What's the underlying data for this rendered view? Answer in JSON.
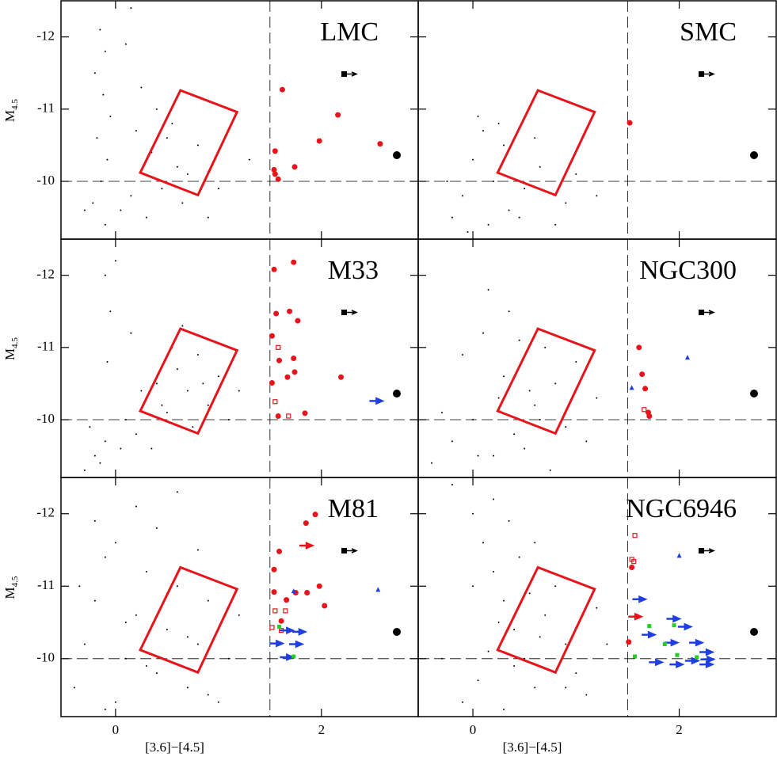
{
  "chart_data": [
    {
      "type": "scatter",
      "label": "LMC",
      "xlim": [
        -0.53,
        2.94
      ],
      "ylim": [
        -9.2,
        -12.5
      ],
      "yticks": [
        -12,
        -11,
        -10
      ],
      "ylabel": "M",
      "ylabel_sub": "4.5",
      "vline": 1.5,
      "hline": -10,
      "box": {
        "color": "#e8141b",
        "x": [
          0.63,
          1.18,
          0.8,
          0.24
        ],
        "y": [
          -11.26,
          -10.96,
          -9.81,
          -10.12
        ]
      },
      "series": [
        {
          "color": "#000000",
          "marker": "dot",
          "x": [
            -0.15,
            -0.1,
            -0.2,
            -0.12,
            -0.05,
            -0.18,
            -0.08,
            -0.14,
            -0.22,
            -0.1,
            0.05,
            0.15,
            0.3,
            0.45,
            0.6,
            0.8,
            0.2,
            0.35,
            0.55,
            0.7,
            1.0,
            0.9,
            0.4,
            0.25,
            0.1,
            -0.3,
            1.3,
            0.65,
            0.5,
            0.15
          ],
          "y": [
            -12.1,
            -11.8,
            -11.5,
            -11.2,
            -10.9,
            -10.6,
            -10.3,
            -10.0,
            -9.7,
            -9.4,
            -9.6,
            -9.8,
            -9.5,
            -9.9,
            -10.2,
            -10.5,
            -10.7,
            -10.4,
            -10.8,
            -10.1,
            -9.9,
            -9.5,
            -11.0,
            -11.3,
            -11.9,
            -9.6,
            -10.3,
            -9.7,
            -10.6,
            -12.4
          ]
        },
        {
          "color": "#e8141b",
          "marker": "circle",
          "x": [
            1.62,
            2.16,
            1.98,
            2.57,
            1.55,
            1.74,
            1.54,
            1.55,
            1.58
          ],
          "y": [
            -11.27,
            -10.92,
            -10.56,
            -10.52,
            -10.42,
            -10.2,
            -10.16,
            -10.1,
            -10.03
          ]
        }
      ]
    },
    {
      "type": "scatter",
      "label": "SMC",
      "xlim": [
        -0.53,
        2.94
      ],
      "ylim": [
        -9.2,
        -12.5
      ],
      "vline": 1.5,
      "hline": -10,
      "box": {
        "color": "#e8141b",
        "x": [
          0.63,
          1.18,
          0.8,
          0.24
        ],
        "y": [
          -11.26,
          -10.96,
          -9.81,
          -10.12
        ]
      },
      "series": [
        {
          "color": "#000000",
          "marker": "dot",
          "x": [
            -0.2,
            -0.1,
            0.0,
            0.1,
            0.2,
            0.35,
            0.5,
            0.65,
            0.8,
            1.0,
            1.2,
            -0.05,
            0.3,
            0.45,
            0.6,
            0.15,
            0.25,
            0.9,
            -0.25,
            0.05
          ],
          "y": [
            -9.5,
            -9.8,
            -10.3,
            -10.7,
            -10.0,
            -9.6,
            -9.9,
            -10.2,
            -9.4,
            -10.1,
            -9.8,
            -9.3,
            -10.5,
            -9.5,
            -10.6,
            -9.4,
            -10.8,
            -9.7,
            -10.0,
            -10.9
          ]
        },
        {
          "color": "#e8141b",
          "marker": "circle",
          "x": [
            1.52
          ],
          "y": [
            -10.81
          ]
        }
      ]
    },
    {
      "type": "scatter",
      "label": "M33",
      "xlim": [
        -0.53,
        2.94
      ],
      "ylim": [
        -9.2,
        -12.5
      ],
      "yticks": [
        -12,
        -11,
        -10
      ],
      "ylabel": "M",
      "ylabel_sub": "4.5",
      "vline": 1.5,
      "hline": -10,
      "box": {
        "color": "#e8141b",
        "x": [
          0.63,
          1.18,
          0.8,
          0.24
        ],
        "y": [
          -11.26,
          -10.96,
          -9.81,
          -10.12
        ]
      },
      "series": [
        {
          "color": "#000000",
          "marker": "dot",
          "x": [
            -0.3,
            -0.2,
            -0.1,
            -0.05,
            0.0,
            0.1,
            0.2,
            0.3,
            0.4,
            0.5,
            0.6,
            0.7,
            0.8,
            0.9,
            1.0,
            1.1,
            -0.15,
            -0.08,
            0.15,
            0.35,
            0.55,
            0.75,
            0.25,
            0.45,
            0.05,
            -0.25,
            1.2,
            0.65,
            0.85,
            -0.1
          ],
          "y": [
            -9.3,
            -9.5,
            -9.7,
            -11.5,
            -12.2,
            -10.0,
            -9.8,
            -10.3,
            -10.5,
            -10.1,
            -10.7,
            -10.4,
            -10.9,
            -10.2,
            -10.6,
            -10.0,
            -9.4,
            -10.8,
            -11.2,
            -9.6,
            -11.0,
            -9.9,
            -10.4,
            -10.2,
            -9.6,
            -9.9,
            -10.4,
            -11.3,
            -10.5,
            -12.0
          ]
        },
        {
          "color": "#e8141b",
          "marker": "circle",
          "x": [
            1.54,
            1.73,
            1.69,
            1.56,
            1.77,
            1.52,
            1.59,
            1.73,
            1.67,
            1.52,
            1.74,
            2.19,
            1.84,
            1.58
          ],
          "y": [
            -12.08,
            -12.18,
            -11.5,
            -11.47,
            -11.37,
            -11.16,
            -10.82,
            -10.85,
            -10.59,
            -10.51,
            -10.66,
            -10.59,
            -10.09,
            -10.05
          ]
        },
        {
          "color": "#e8141b",
          "marker": "square",
          "x": [
            1.58,
            1.55,
            1.68
          ],
          "y": [
            -11.0,
            -10.25,
            -10.05
          ]
        },
        {
          "color": "#1f3fe0",
          "marker": "arrow",
          "x": [
            2.52
          ],
          "y": [
            -10.26
          ]
        }
      ]
    },
    {
      "type": "scatter",
      "label": "NGC300",
      "xlim": [
        -0.53,
        2.94
      ],
      "ylim": [
        -9.2,
        -12.5
      ],
      "vline": 1.5,
      "hline": -10,
      "box": {
        "color": "#e8141b",
        "x": [
          0.63,
          1.18,
          0.8,
          0.24
        ],
        "y": [
          -11.26,
          -10.96,
          -9.81,
          -10.12
        ]
      },
      "series": [
        {
          "color": "#000000",
          "marker": "dot",
          "x": [
            -0.4,
            -0.2,
            0.0,
            0.2,
            0.4,
            0.6,
            0.8,
            1.0,
            1.2,
            0.1,
            0.3,
            0.5,
            0.7,
            0.9,
            -0.3,
            -0.1,
            0.15,
            0.35,
            0.55,
            0.75,
            0.05,
            0.25,
            1.1,
            0.45,
            0.65
          ],
          "y": [
            -9.4,
            -9.7,
            -10.0,
            -9.5,
            -9.8,
            -10.2,
            -10.5,
            -10.8,
            -10.3,
            -11.2,
            -10.6,
            -9.6,
            -11.0,
            -9.9,
            -10.1,
            -10.9,
            -11.8,
            -11.5,
            -10.4,
            -9.3,
            -9.5,
            -10.3,
            -9.7,
            -11.1,
            -10.0
          ]
        },
        {
          "color": "#e8141b",
          "marker": "circle",
          "x": [
            1.61,
            1.64,
            1.67,
            1.7,
            1.71
          ],
          "y": [
            -11.0,
            -10.63,
            -10.43,
            -10.1,
            -10.05
          ]
        },
        {
          "color": "#e8141b",
          "marker": "square",
          "x": [
            1.66
          ],
          "y": [
            -10.14
          ]
        },
        {
          "color": "#1f3fe0",
          "marker": "triangle",
          "x": [
            2.08,
            1.54
          ],
          "y": [
            -10.86,
            -10.44
          ]
        }
      ]
    },
    {
      "type": "scatter",
      "label": "M81",
      "xlim": [
        -0.53,
        2.94
      ],
      "ylim": [
        -9.2,
        -12.5
      ],
      "xticks": [
        0,
        2
      ],
      "yticks": [
        -12,
        -11,
        -10
      ],
      "xlabel": "[3.6]−[4.5]",
      "ylabel": "M",
      "ylabel_sub": "4.5",
      "vline": 1.5,
      "hline": -10,
      "box": {
        "color": "#e8141b",
        "x": [
          0.63,
          1.18,
          0.8,
          0.24
        ],
        "y": [
          -11.26,
          -10.96,
          -9.81,
          -10.12
        ]
      },
      "series": [
        {
          "color": "#000000",
          "marker": "dot",
          "x": [
            -0.4,
            -0.3,
            -0.2,
            -0.1,
            0.0,
            0.1,
            0.2,
            0.3,
            0.4,
            0.5,
            0.6,
            0.7,
            0.8,
            0.9,
            1.0,
            1.1,
            -0.2,
            0.0,
            0.2,
            0.4,
            0.6,
            0.8,
            -0.1,
            0.1,
            0.3,
            0.5,
            0.7,
            1.2,
            -0.35,
            0.9
          ],
          "y": [
            -9.6,
            -10.2,
            -10.8,
            -11.4,
            -9.4,
            -10.0,
            -10.6,
            -11.2,
            -9.8,
            -10.4,
            -11.0,
            -9.6,
            -10.2,
            -10.8,
            -9.4,
            -10.0,
            -11.9,
            -11.6,
            -12.1,
            -11.8,
            -12.3,
            -11.5,
            -9.3,
            -10.5,
            -9.9,
            -10.9,
            -10.3,
            -10.6,
            -11.0,
            -9.5
          ]
        },
        {
          "color": "#e8141b",
          "marker": "circle",
          "x": [
            1.94,
            1.85,
            1.59,
            1.54,
            1.54,
            1.75,
            1.98,
            1.86,
            1.66,
            2.03,
            1.61
          ],
          "y": [
            -11.99,
            -11.87,
            -11.48,
            -11.23,
            -10.92,
            -10.91,
            -11.0,
            -10.91,
            -10.81,
            -10.73,
            -10.52
          ]
        },
        {
          "color": "#e8141b",
          "marker": "arrow",
          "x": [
            1.84
          ],
          "y": [
            -11.56
          ]
        },
        {
          "color": "#e8141b",
          "marker": "square",
          "x": [
            1.65,
            1.55,
            1.52,
            1.61
          ],
          "y": [
            -10.66,
            -10.66,
            -10.43,
            -10.39
          ]
        },
        {
          "color": "#1f3fe0",
          "marker": "arrow",
          "x": [
            1.65,
            1.77,
            1.55,
            1.74,
            1.65
          ],
          "y": [
            -10.39,
            -10.37,
            -10.21,
            -10.2,
            -10.02
          ]
        },
        {
          "color": "#1f3fe0",
          "marker": "triangle",
          "x": [
            2.55,
            1.73
          ],
          "y": [
            -10.95,
            -10.93
          ]
        },
        {
          "color": "#22d022",
          "marker": "filled-square",
          "x": [
            1.59,
            1.73
          ],
          "y": [
            -10.44,
            -10.03
          ]
        }
      ]
    },
    {
      "type": "scatter",
      "label": "NGC6946",
      "xlim": [
        -0.53,
        2.94
      ],
      "ylim": [
        -9.2,
        -12.5
      ],
      "xticks": [
        0,
        2
      ],
      "xlabel": "[3.6]−[4.5]",
      "vline": 1.5,
      "hline": -10,
      "box": {
        "color": "#e8141b",
        "x": [
          0.63,
          1.18,
          0.8,
          0.24
        ],
        "y": [
          -11.26,
          -10.96,
          -9.81,
          -10.12
        ]
      },
      "series": [
        {
          "color": "#000000",
          "marker": "dot",
          "x": [
            -0.2,
            0.0,
            0.1,
            0.2,
            0.3,
            0.4,
            0.5,
            0.6,
            0.7,
            0.8,
            0.9,
            1.0,
            -0.1,
            0.05,
            0.15,
            0.25,
            0.35,
            0.45,
            0.55,
            0.65,
            1.1,
            1.2,
            -0.3,
            0.0,
            0.3,
            0.6,
            0.9,
            1.3,
            0.2,
            0.4
          ],
          "y": [
            -12.4,
            -12.0,
            -11.6,
            -11.2,
            -10.8,
            -10.4,
            -10.0,
            -9.6,
            -10.6,
            -11.0,
            -10.2,
            -9.8,
            -9.4,
            -9.7,
            -10.1,
            -10.5,
            -11.9,
            -11.4,
            -10.9,
            -10.3,
            -9.5,
            -10.7,
            -10.0,
            -11.0,
            -9.3,
            -11.6,
            -9.6,
            -10.2,
            -12.2,
            -9.9
          ]
        },
        {
          "color": "#e8141b",
          "marker": "square",
          "x": [
            1.57,
            1.56,
            1.54
          ],
          "y": [
            -11.7,
            -11.34,
            -11.37
          ]
        },
        {
          "color": "#e8141b",
          "marker": "circle",
          "x": [
            1.54,
            1.51
          ],
          "y": [
            -11.26,
            -10.23
          ]
        },
        {
          "color": "#e8141b",
          "marker": "arrow",
          "x": [
            1.56
          ],
          "y": [
            -10.58
          ]
        },
        {
          "color": "#1f3fe0",
          "marker": "arrow",
          "x": [
            1.6,
            1.69,
            1.93,
            2.04,
            1.91,
            2.15,
            1.76,
            1.96,
            2.11,
            2.25,
            2.26,
            2.25
          ],
          "y": [
            -10.82,
            -10.33,
            -10.55,
            -10.44,
            -10.22,
            -10.22,
            -9.95,
            -9.92,
            -9.97,
            -10.09,
            -9.99,
            -9.92
          ]
        },
        {
          "color": "#1f3fe0",
          "marker": "triangle",
          "x": [
            2.0
          ],
          "y": [
            -11.42
          ]
        },
        {
          "color": "#22d022",
          "marker": "filled-square",
          "x": [
            1.71,
            1.95,
            1.86,
            1.57,
            1.98,
            2.17
          ],
          "y": [
            -10.45,
            -10.46,
            -10.2,
            -10.03,
            -10.05,
            -10.02
          ]
        }
      ]
    }
  ]
}
